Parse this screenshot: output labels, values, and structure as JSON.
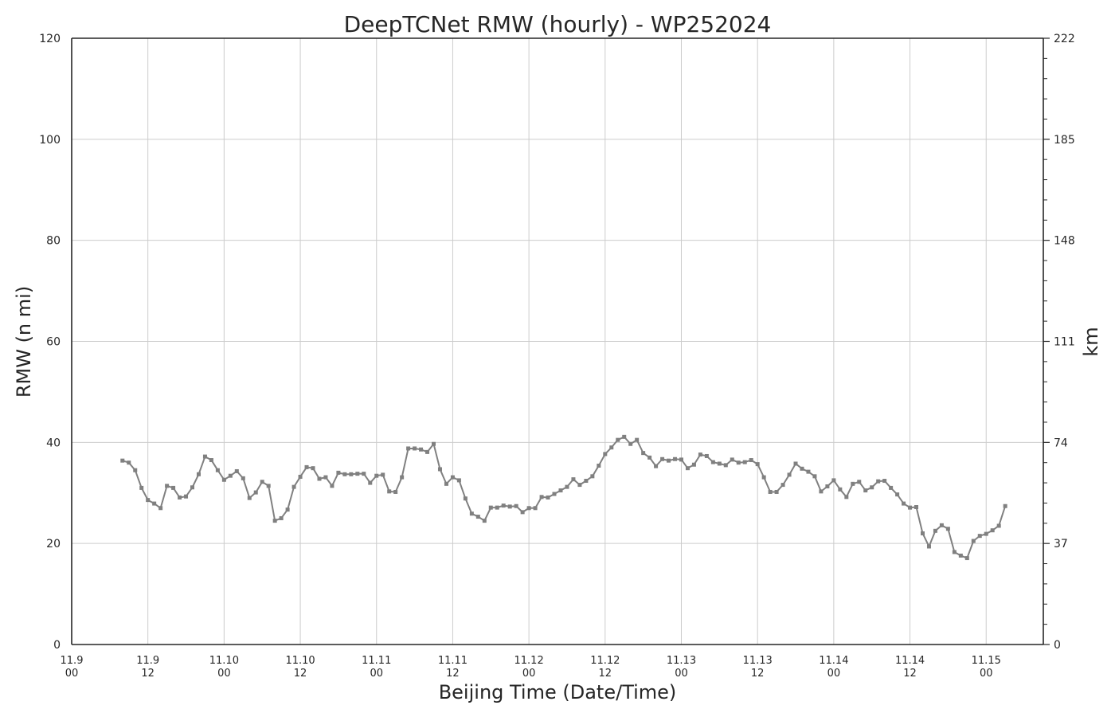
{
  "chart_data": {
    "type": "line",
    "title": "DeepTCNet RMW (hourly) - WP252024",
    "xlabel": "Beijing Time (Date/Time)",
    "ylabel": "RMW (n mi)",
    "ylabel_right": "km",
    "ylim": [
      0,
      120
    ],
    "yticks": [
      "0",
      "20",
      "40",
      "60",
      "80",
      "100",
      "120"
    ],
    "yticks_right": [
      "0",
      "37",
      "74",
      "111",
      "148",
      "185",
      "222"
    ],
    "xlim": [
      "2024-11-09 00:00",
      "2024-11-15 09:00"
    ],
    "xticks": [
      {
        "x": "2024-11-09 00:00",
        "date": "11.9",
        "time": "00"
      },
      {
        "x": "2024-11-09 12:00",
        "date": "11.9",
        "time": "12"
      },
      {
        "x": "2024-11-10 00:00",
        "date": "11.10",
        "time": "00"
      },
      {
        "x": "2024-11-10 12:00",
        "date": "11.10",
        "time": "12"
      },
      {
        "x": "2024-11-11 00:00",
        "date": "11.11",
        "time": "00"
      },
      {
        "x": "2024-11-11 12:00",
        "date": "11.11",
        "time": "12"
      },
      {
        "x": "2024-11-12 00:00",
        "date": "11.12",
        "time": "00"
      },
      {
        "x": "2024-11-12 12:00",
        "date": "11.12",
        "time": "12"
      },
      {
        "x": "2024-11-13 00:00",
        "date": "11.13",
        "time": "00"
      },
      {
        "x": "2024-11-13 12:00",
        "date": "11.13",
        "time": "12"
      },
      {
        "x": "2024-11-14 00:00",
        "date": "11.14",
        "time": "00"
      },
      {
        "x": "2024-11-14 12:00",
        "date": "11.14",
        "time": "12"
      },
      {
        "x": "2024-11-15 00:00",
        "date": "11.15",
        "time": "00"
      }
    ],
    "grid": true,
    "legend": "none",
    "series_color": "#808080",
    "series": [
      {
        "x_start": "2024-11-09 08:00",
        "x_step_hours": 1,
        "values": [
          36.4,
          36.0,
          34.5,
          31.0,
          28.6,
          27.9,
          27.0,
          31.4,
          31.0,
          29.1,
          29.3,
          31.1,
          33.7,
          37.2,
          36.5,
          34.5,
          32.6,
          33.4,
          34.3,
          32.9,
          29.0,
          30.1,
          32.2,
          31.4,
          24.5,
          25.0,
          26.7,
          31.2,
          33.2,
          35.1,
          34.9,
          32.8,
          33.1,
          31.4,
          34.0,
          33.7,
          33.7,
          33.8,
          33.8,
          32.0,
          33.4,
          33.6,
          30.3,
          30.2,
          33.1,
          38.8,
          38.8,
          38.6,
          38.1,
          39.7,
          34.7,
          31.8,
          33.1,
          32.5,
          28.9,
          25.9,
          25.3,
          24.5,
          27.1,
          27.1,
          27.5,
          27.3,
          27.4,
          26.2,
          27.0,
          27.0,
          29.2,
          29.1,
          29.8,
          30.5,
          31.2,
          32.7,
          31.6,
          32.4,
          33.3,
          35.4,
          37.7,
          39.0,
          40.5,
          41.1,
          39.7,
          40.5,
          37.9,
          37.0,
          35.3,
          36.7,
          36.4,
          36.7,
          36.6,
          34.9,
          35.6,
          37.6,
          37.3,
          36.1,
          35.8,
          35.5,
          36.6,
          36.0,
          36.1,
          36.5,
          35.7,
          33.1,
          30.2,
          30.2,
          31.6,
          33.6,
          35.8,
          34.8,
          34.2,
          33.3,
          30.3,
          31.3,
          32.5,
          30.7,
          29.2,
          31.8,
          32.2,
          30.5,
          31.1,
          32.3,
          32.4,
          31.0,
          29.7,
          27.9,
          27.1,
          27.2,
          22.0,
          19.4,
          22.5,
          23.6,
          22.9,
          18.3,
          17.6,
          17.1,
          20.5,
          21.5,
          21.9,
          22.6,
          23.5,
          27.4
        ]
      }
    ]
  }
}
